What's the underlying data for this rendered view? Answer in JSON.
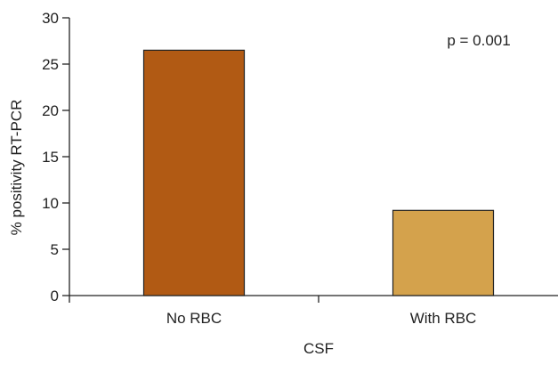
{
  "chart_data": {
    "type": "bar",
    "categories": [
      "No RBC",
      "With RBC"
    ],
    "values": [
      26.5,
      9.2
    ],
    "colors": [
      "#B15A14",
      "#D4A24C"
    ],
    "bar_outline_color": "#222222",
    "ylabel": "% positivity RT-PCR",
    "xlabel": "CSF",
    "ylim": [
      0,
      30
    ],
    "yticks": [
      0,
      5,
      10,
      15,
      20,
      25,
      30
    ],
    "annotation": "p = 0.001",
    "grid": false,
    "legend": "none"
  }
}
